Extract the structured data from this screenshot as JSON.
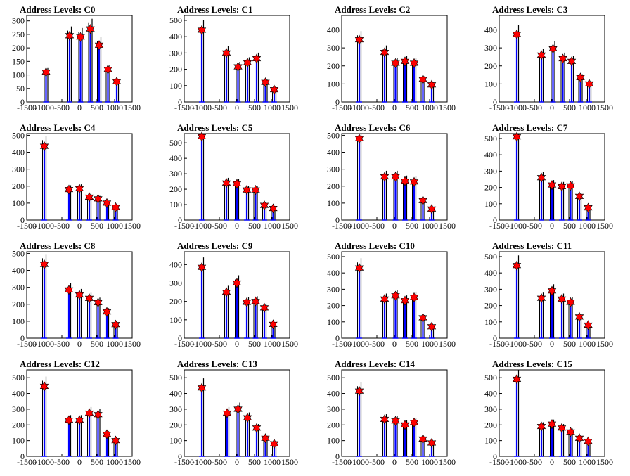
{
  "figure": {
    "layout": {
      "rows": 4,
      "cols": 4
    }
  },
  "colors": {
    "blue_line": "#0000ff",
    "black_line": "#000000",
    "marker_fill": "#ff0000",
    "marker_stroke": "#000000",
    "background": "#ffffff"
  },
  "chart_data": [
    {
      "type": "histogram",
      "title": "Address Levels: C0",
      "xlim": [
        -1500,
        1500
      ],
      "ylim": [
        0,
        320
      ],
      "x_ticks": [
        -1500,
        -1000,
        -500,
        0,
        500,
        1000,
        1500
      ],
      "x_tick_labels": [
        "-1500",
        "-1000",
        "-500",
        "0",
        "500",
        "1000",
        "1500"
      ],
      "y_ticks": [
        0,
        50,
        100,
        150,
        200,
        250,
        300
      ],
      "peaks": [
        {
          "x": -950,
          "y": 110
        },
        {
          "x": -280,
          "y": 245
        },
        {
          "x": 30,
          "y": 240
        },
        {
          "x": 310,
          "y": 270
        },
        {
          "x": 560,
          "y": 210
        },
        {
          "x": 810,
          "y": 120
        },
        {
          "x": 1060,
          "y": 75
        }
      ]
    },
    {
      "type": "histogram",
      "title": "Address Levels: C1",
      "xlim": [
        -1500,
        1500
      ],
      "ylim": [
        0,
        530
      ],
      "x_ticks": [
        -1500,
        -1000,
        -500,
        0,
        500,
        1000,
        1500
      ],
      "x_tick_labels": [
        "-1500",
        "-1000",
        "-500",
        "0",
        "500",
        "1000",
        "1500"
      ],
      "y_ticks": [
        0,
        100,
        200,
        300,
        400,
        500
      ],
      "peaks": [
        {
          "x": -1000,
          "y": 440
        },
        {
          "x": -300,
          "y": 300
        },
        {
          "x": 30,
          "y": 215
        },
        {
          "x": 300,
          "y": 240
        },
        {
          "x": 560,
          "y": 265
        },
        {
          "x": 810,
          "y": 120
        },
        {
          "x": 1060,
          "y": 75
        }
      ]
    },
    {
      "type": "histogram",
      "title": "Address Levels: C2",
      "xlim": [
        -1500,
        1500
      ],
      "ylim": [
        0,
        480
      ],
      "x_ticks": [
        -1500,
        -1000,
        -500,
        0,
        500,
        1000,
        1500
      ],
      "x_tick_labels": [
        "-1500",
        "-1000",
        "-500",
        "0",
        "500",
        "1000",
        "1500"
      ],
      "y_ticks": [
        0,
        100,
        200,
        300,
        400
      ],
      "peaks": [
        {
          "x": -1000,
          "y": 345
        },
        {
          "x": -280,
          "y": 275
        },
        {
          "x": 30,
          "y": 215
        },
        {
          "x": 300,
          "y": 225
        },
        {
          "x": 560,
          "y": 215
        },
        {
          "x": 810,
          "y": 125
        },
        {
          "x": 1060,
          "y": 95
        }
      ]
    },
    {
      "type": "histogram",
      "title": "Address Levels: C3",
      "xlim": [
        -1500,
        1500
      ],
      "ylim": [
        0,
        480
      ],
      "x_ticks": [
        -1500,
        -1000,
        -500,
        0,
        500,
        1000,
        1500
      ],
      "x_tick_labels": [
        "-1500",
        "-1000",
        "-500",
        "0",
        "500",
        "1000",
        "1500"
      ],
      "y_ticks": [
        0,
        100,
        200,
        300,
        400
      ],
      "peaks": [
        {
          "x": -1000,
          "y": 375
        },
        {
          "x": -300,
          "y": 260
        },
        {
          "x": 30,
          "y": 295
        },
        {
          "x": 310,
          "y": 240
        },
        {
          "x": 560,
          "y": 225
        },
        {
          "x": 810,
          "y": 135
        },
        {
          "x": 1060,
          "y": 100
        }
      ]
    },
    {
      "type": "histogram",
      "title": "Address Levels: C4",
      "xlim": [
        -1500,
        1500
      ],
      "ylim": [
        0,
        510
      ],
      "x_ticks": [
        -1500,
        -1000,
        -500,
        0,
        500,
        1000,
        1500
      ],
      "x_tick_labels": [
        "-1500",
        "-1000",
        "-500",
        "0",
        "500",
        "1000",
        "1500"
      ],
      "y_ticks": [
        0,
        100,
        200,
        300,
        400,
        500
      ],
      "peaks": [
        {
          "x": -1000,
          "y": 435
        },
        {
          "x": -300,
          "y": 180
        },
        {
          "x": 0,
          "y": 185
        },
        {
          "x": 280,
          "y": 135
        },
        {
          "x": 530,
          "y": 125
        },
        {
          "x": 780,
          "y": 100
        },
        {
          "x": 1030,
          "y": 75
        }
      ]
    },
    {
      "type": "histogram",
      "title": "Address Levels: C5",
      "xlim": [
        -1500,
        1500
      ],
      "ylim": [
        0,
        560
      ],
      "x_ticks": [
        -1500,
        -1000,
        -500,
        0,
        500,
        1000,
        1500
      ],
      "x_tick_labels": [
        "-1500",
        "-1000",
        "-500",
        "0",
        "500",
        "1000",
        "1500"
      ],
      "y_ticks": [
        0,
        100,
        200,
        300,
        400,
        500
      ],
      "peaks": [
        {
          "x": -1000,
          "y": 540
        },
        {
          "x": -300,
          "y": 240
        },
        {
          "x": 0,
          "y": 235
        },
        {
          "x": 280,
          "y": 195
        },
        {
          "x": 530,
          "y": 195
        },
        {
          "x": 780,
          "y": 95
        },
        {
          "x": 1030,
          "y": 75
        }
      ]
    },
    {
      "type": "histogram",
      "title": "Address Levels: C6",
      "xlim": [
        -1500,
        1500
      ],
      "ylim": [
        0,
        510
      ],
      "x_ticks": [
        -1500,
        -1000,
        -500,
        0,
        500,
        1000,
        1500
      ],
      "x_tick_labels": [
        "-1500",
        "-1000",
        "-500",
        "0",
        "500",
        "1000",
        "1500"
      ],
      "y_ticks": [
        0,
        100,
        200,
        300,
        400,
        500
      ],
      "peaks": [
        {
          "x": -1000,
          "y": 480
        },
        {
          "x": -280,
          "y": 255
        },
        {
          "x": 30,
          "y": 255
        },
        {
          "x": 300,
          "y": 230
        },
        {
          "x": 560,
          "y": 225
        },
        {
          "x": 810,
          "y": 115
        },
        {
          "x": 1060,
          "y": 65
        }
      ]
    },
    {
      "type": "histogram",
      "title": "Address Levels: C7",
      "xlim": [
        -1500,
        1500
      ],
      "ylim": [
        0,
        530
      ],
      "x_ticks": [
        -1500,
        -1000,
        -500,
        0,
        500,
        1000,
        1500
      ],
      "x_tick_labels": [
        "-1500",
        "-1000",
        "-500",
        "0",
        "500",
        "1000",
        "1500"
      ],
      "y_ticks": [
        0,
        100,
        200,
        300,
        400,
        500
      ],
      "peaks": [
        {
          "x": -1000,
          "y": 510
        },
        {
          "x": -300,
          "y": 260
        },
        {
          "x": 0,
          "y": 215
        },
        {
          "x": 280,
          "y": 205
        },
        {
          "x": 530,
          "y": 210
        },
        {
          "x": 780,
          "y": 145
        },
        {
          "x": 1030,
          "y": 75
        }
      ]
    },
    {
      "type": "histogram",
      "title": "Address Levels: C8",
      "xlim": [
        -1500,
        1500
      ],
      "ylim": [
        0,
        510
      ],
      "x_ticks": [
        -1500,
        -1000,
        -500,
        0,
        500,
        1000,
        1500
      ],
      "x_tick_labels": [
        "-1500",
        "-1000",
        "-500",
        "0",
        "500",
        "1000",
        "1500"
      ],
      "y_ticks": [
        0,
        100,
        200,
        300,
        400,
        500
      ],
      "peaks": [
        {
          "x": -1000,
          "y": 435
        },
        {
          "x": -300,
          "y": 285
        },
        {
          "x": 0,
          "y": 255
        },
        {
          "x": 280,
          "y": 235
        },
        {
          "x": 530,
          "y": 210
        },
        {
          "x": 780,
          "y": 155
        },
        {
          "x": 1030,
          "y": 80
        }
      ]
    },
    {
      "type": "histogram",
      "title": "Address Levels: C9",
      "xlim": [
        -1500,
        1500
      ],
      "ylim": [
        0,
        470
      ],
      "x_ticks": [
        -1500,
        -1000,
        -500,
        0,
        500,
        1000,
        1500
      ],
      "x_tick_labels": [
        "-1500",
        "-1000",
        "-500",
        "0",
        "500",
        "1000",
        "1500"
      ],
      "y_ticks": [
        0,
        100,
        200,
        300,
        400
      ],
      "peaks": [
        {
          "x": -1000,
          "y": 385
        },
        {
          "x": -300,
          "y": 250
        },
        {
          "x": 0,
          "y": 300
        },
        {
          "x": 280,
          "y": 195
        },
        {
          "x": 530,
          "y": 200
        },
        {
          "x": 780,
          "y": 165
        },
        {
          "x": 1030,
          "y": 75
        }
      ]
    },
    {
      "type": "histogram",
      "title": "Address Levels: C10",
      "xlim": [
        -1500,
        1500
      ],
      "ylim": [
        0,
        530
      ],
      "x_ticks": [
        -1500,
        -1000,
        -500,
        0,
        500,
        1000,
        1500
      ],
      "x_tick_labels": [
        "-1500",
        "-1000",
        "-500",
        "0",
        "500",
        "1000",
        "1500"
      ],
      "y_ticks": [
        0,
        100,
        200,
        300,
        400,
        500
      ],
      "peaks": [
        {
          "x": -1000,
          "y": 430
        },
        {
          "x": -280,
          "y": 240
        },
        {
          "x": 30,
          "y": 260
        },
        {
          "x": 300,
          "y": 230
        },
        {
          "x": 560,
          "y": 250
        },
        {
          "x": 810,
          "y": 125
        },
        {
          "x": 1060,
          "y": 70
        }
      ]
    },
    {
      "type": "histogram",
      "title": "Address Levels: C11",
      "xlim": [
        -1500,
        1500
      ],
      "ylim": [
        0,
        530
      ],
      "x_ticks": [
        -1500,
        -1000,
        -500,
        0,
        500,
        1000,
        1500
      ],
      "x_tick_labels": [
        "-1500",
        "-1000",
        "-500",
        "0",
        "500",
        "1000",
        "1500"
      ],
      "y_ticks": [
        0,
        100,
        200,
        300,
        400,
        500
      ],
      "peaks": [
        {
          "x": -1000,
          "y": 445
        },
        {
          "x": -300,
          "y": 245
        },
        {
          "x": 0,
          "y": 290
        },
        {
          "x": 280,
          "y": 240
        },
        {
          "x": 530,
          "y": 220
        },
        {
          "x": 780,
          "y": 130
        },
        {
          "x": 1030,
          "y": 80
        }
      ]
    },
    {
      "type": "histogram",
      "title": "Address Levels: C12",
      "xlim": [
        -1500,
        1500
      ],
      "ylim": [
        0,
        550
      ],
      "x_ticks": [
        -1500,
        -1000,
        -500,
        0,
        500,
        1000,
        1500
      ],
      "x_tick_labels": [
        "-1500",
        "-1000",
        "-500",
        "0",
        "500",
        "1000",
        "1500"
      ],
      "y_ticks": [
        0,
        100,
        200,
        300,
        400,
        500
      ],
      "peaks": [
        {
          "x": -1000,
          "y": 445
        },
        {
          "x": -300,
          "y": 230
        },
        {
          "x": 0,
          "y": 230
        },
        {
          "x": 280,
          "y": 275
        },
        {
          "x": 530,
          "y": 265
        },
        {
          "x": 780,
          "y": 140
        },
        {
          "x": 1030,
          "y": 100
        }
      ]
    },
    {
      "type": "histogram",
      "title": "Address Levels: C13",
      "xlim": [
        -1500,
        1500
      ],
      "ylim": [
        0,
        550
      ],
      "x_ticks": [
        -1500,
        -1000,
        -500,
        0,
        500,
        1000,
        1500
      ],
      "x_tick_labels": [
        "-1500",
        "-1000",
        "-500",
        "0",
        "500",
        "1000",
        "1500"
      ],
      "y_ticks": [
        0,
        100,
        200,
        300,
        400,
        500
      ],
      "peaks": [
        {
          "x": -1000,
          "y": 435
        },
        {
          "x": -280,
          "y": 275
        },
        {
          "x": 30,
          "y": 300
        },
        {
          "x": 300,
          "y": 245
        },
        {
          "x": 560,
          "y": 180
        },
        {
          "x": 810,
          "y": 115
        },
        {
          "x": 1060,
          "y": 80
        }
      ]
    },
    {
      "type": "histogram",
      "title": "Address Levels: C14",
      "xlim": [
        -1500,
        1500
      ],
      "ylim": [
        0,
        550
      ],
      "x_ticks": [
        -1500,
        -1000,
        -500,
        0,
        500,
        1000,
        1500
      ],
      "x_tick_labels": [
        "-1500",
        "-1000",
        "-500",
        "0",
        "500",
        "1000",
        "1500"
      ],
      "y_ticks": [
        0,
        100,
        200,
        300,
        400,
        500
      ],
      "peaks": [
        {
          "x": -1000,
          "y": 415
        },
        {
          "x": -280,
          "y": 235
        },
        {
          "x": 30,
          "y": 225
        },
        {
          "x": 300,
          "y": 200
        },
        {
          "x": 560,
          "y": 215
        },
        {
          "x": 810,
          "y": 110
        },
        {
          "x": 1060,
          "y": 85
        }
      ]
    },
    {
      "type": "histogram",
      "title": "Address Levels: C15",
      "xlim": [
        -1500,
        1500
      ],
      "ylim": [
        0,
        550
      ],
      "x_ticks": [
        -1500,
        -1000,
        -500,
        0,
        500,
        1000,
        1500
      ],
      "x_tick_labels": [
        "-1500",
        "-1000",
        "-500",
        "0",
        "500",
        "1000",
        "1500"
      ],
      "y_ticks": [
        0,
        100,
        200,
        300,
        400,
        500
      ],
      "peaks": [
        {
          "x": -1000,
          "y": 490
        },
        {
          "x": -300,
          "y": 190
        },
        {
          "x": 0,
          "y": 205
        },
        {
          "x": 280,
          "y": 180
        },
        {
          "x": 530,
          "y": 155
        },
        {
          "x": 780,
          "y": 115
        },
        {
          "x": 1030,
          "y": 95
        }
      ]
    }
  ]
}
